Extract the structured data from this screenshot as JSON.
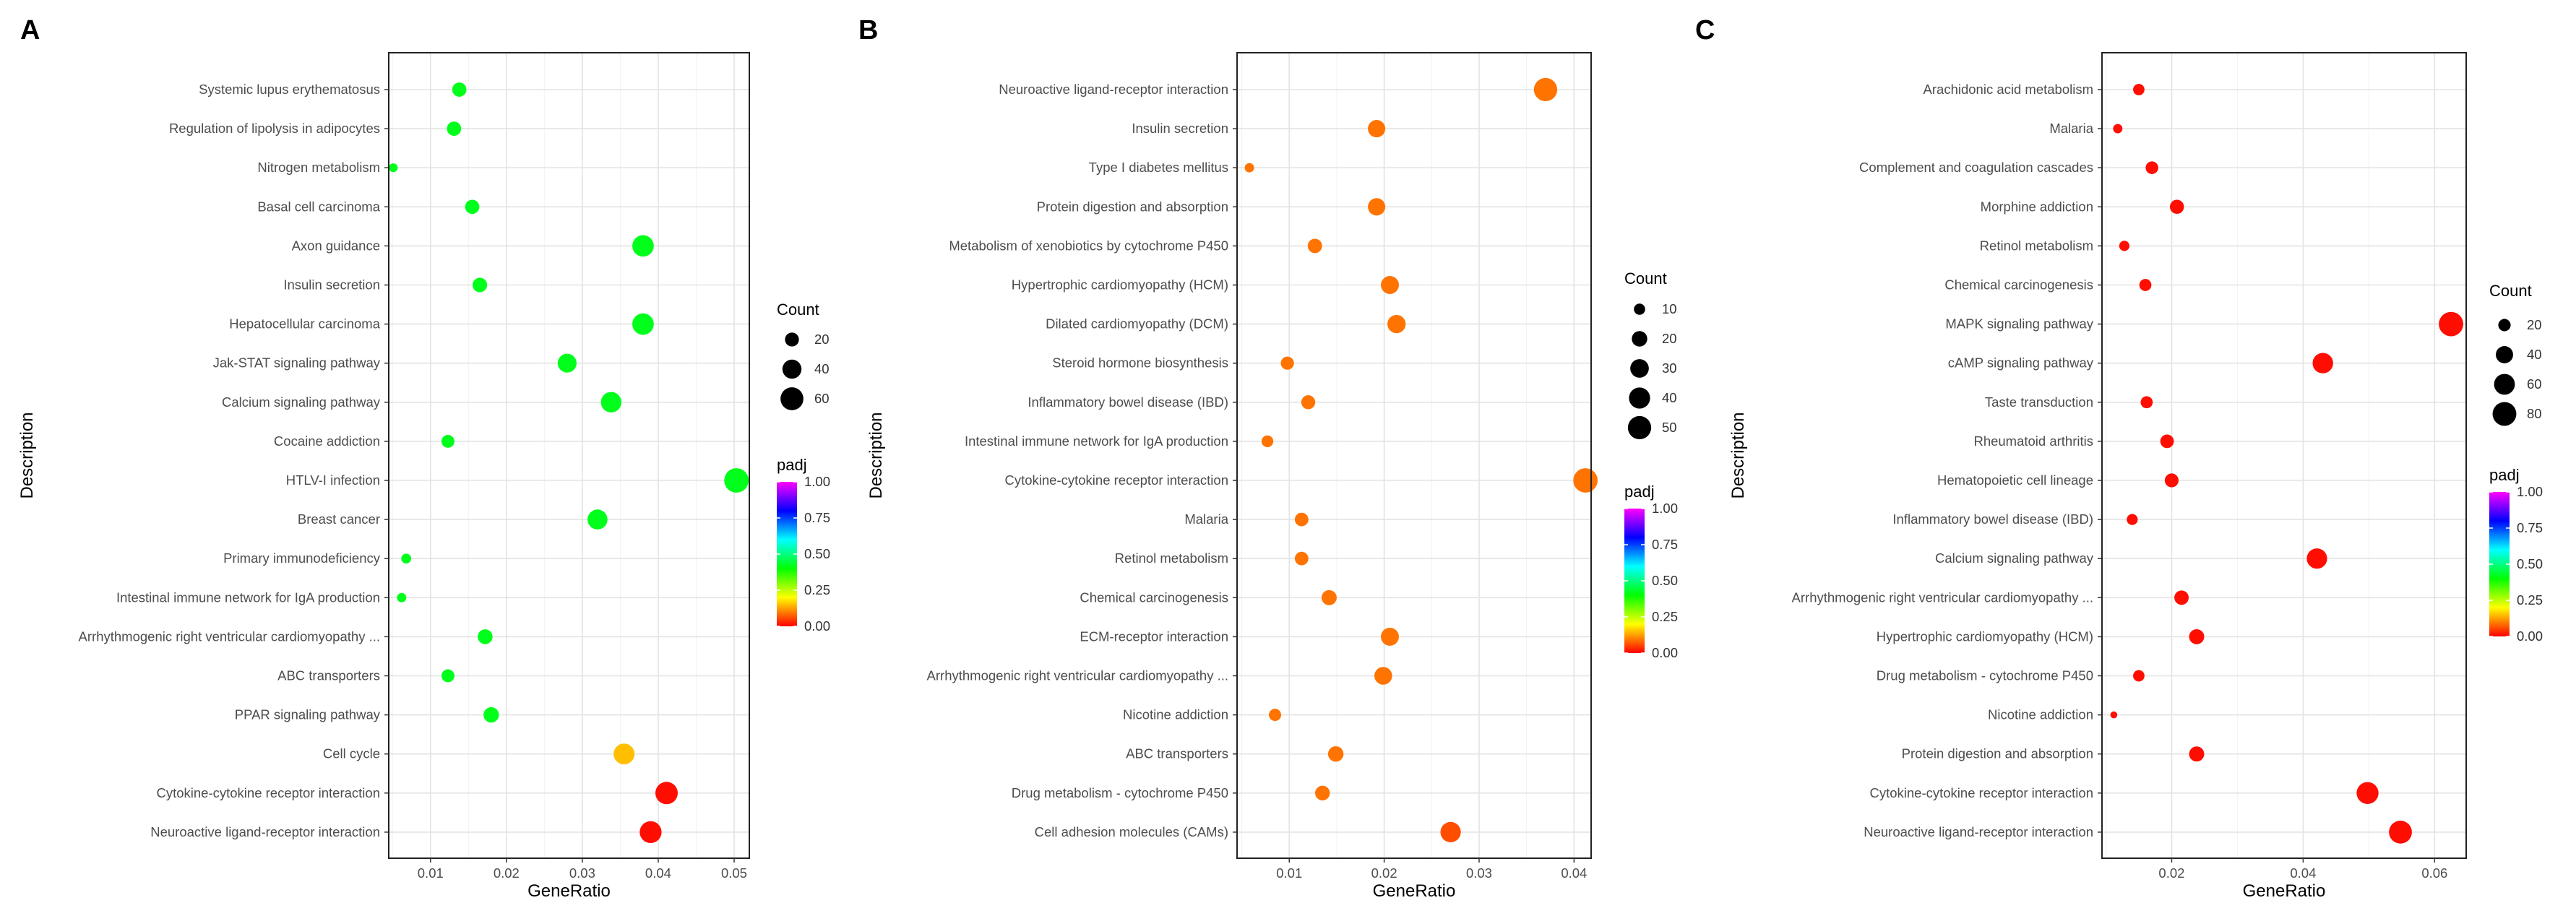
{
  "figure": {
    "shared": {
      "y_label": "Description",
      "x_label": "GeneRatio",
      "size_legend_title": "Count",
      "color_legend_title": "padj",
      "color_ticks": [
        "1.00",
        "0.75",
        "0.50",
        "0.25",
        "0.00"
      ],
      "colorscale": [
        "#ff0000",
        "#ffff00",
        "#00ff00",
        "#00ffff",
        "#0000ff",
        "#ff00ff"
      ]
    }
  },
  "chart_data": [
    {
      "panel": "A",
      "type": "scatter",
      "xlabel": "GeneRatio",
      "ylabel": "Description",
      "xlim": [
        0.0045,
        0.052
      ],
      "x_ticks": [
        0.01,
        0.02,
        0.03,
        0.04,
        0.05
      ],
      "x_tick_labels": [
        "0.01",
        "0.02",
        "0.03",
        "0.04",
        "0.05"
      ],
      "size_legend": {
        "values": [
          20,
          40,
          60
        ],
        "labels": [
          "20",
          "40",
          "60"
        ]
      },
      "count_range": [
        4,
        70
      ],
      "points": [
        {
          "term": "Systemic lupus erythematosus",
          "gene_ratio": 0.0138,
          "count": 21,
          "padj": 0.42
        },
        {
          "term": "Regulation of lipolysis in adipocytes",
          "gene_ratio": 0.0131,
          "count": 21,
          "padj": 0.42
        },
        {
          "term": "Nitrogen metabolism",
          "gene_ratio": 0.0051,
          "count": 8,
          "padj": 0.42
        },
        {
          "term": "Basal cell carcinoma",
          "gene_ratio": 0.0155,
          "count": 21,
          "padj": 0.42
        },
        {
          "term": "Axon guidance",
          "gene_ratio": 0.038,
          "count": 52,
          "padj": 0.42
        },
        {
          "term": "Insulin secretion",
          "gene_ratio": 0.0165,
          "count": 22,
          "padj": 0.42
        },
        {
          "term": "Hepatocellular carcinoma",
          "gene_ratio": 0.038,
          "count": 52,
          "padj": 0.42
        },
        {
          "term": "Jak-STAT signaling pathway",
          "gene_ratio": 0.028,
          "count": 39,
          "padj": 0.42
        },
        {
          "term": "Calcium signaling pathway",
          "gene_ratio": 0.0338,
          "count": 47,
          "padj": 0.42
        },
        {
          "term": "Cocaine addiction",
          "gene_ratio": 0.0123,
          "count": 17,
          "padj": 0.42
        },
        {
          "term": "HTLV-I infection",
          "gene_ratio": 0.0503,
          "count": 69,
          "padj": 0.42
        },
        {
          "term": "Breast cancer",
          "gene_ratio": 0.032,
          "count": 44,
          "padj": 0.42
        },
        {
          "term": "Primary immunodeficiency",
          "gene_ratio": 0.0068,
          "count": 10,
          "padj": 0.42
        },
        {
          "term": "Intestinal immune network for IgA production",
          "gene_ratio": 0.0062,
          "count": 9,
          "padj": 0.42
        },
        {
          "term": "Arrhythmogenic right ventricular cardiomyopathy ...",
          "gene_ratio": 0.0172,
          "count": 23,
          "padj": 0.42
        },
        {
          "term": "ABC transporters",
          "gene_ratio": 0.0123,
          "count": 17,
          "padj": 0.42
        },
        {
          "term": "PPAR signaling pathway",
          "gene_ratio": 0.018,
          "count": 25,
          "padj": 0.42
        },
        {
          "term": "Cell cycle",
          "gene_ratio": 0.0355,
          "count": 49,
          "padj": 0.15
        },
        {
          "term": "Cytokine-cytokine receptor interaction",
          "gene_ratio": 0.0411,
          "count": 57,
          "padj": 0.01
        },
        {
          "term": "Neuroactive ligand-receptor interaction",
          "gene_ratio": 0.039,
          "count": 54,
          "padj": 0.01
        }
      ]
    },
    {
      "panel": "B",
      "type": "scatter",
      "xlabel": "GeneRatio",
      "ylabel": "Description",
      "xlim": [
        0.0045,
        0.0418
      ],
      "x_ticks": [
        0.01,
        0.02,
        0.03,
        0.04
      ],
      "x_tick_labels": [
        "0.01",
        "0.02",
        "0.03",
        "0.04"
      ],
      "size_legend": {
        "values": [
          10,
          20,
          30,
          40,
          50
        ],
        "labels": [
          "10",
          "20",
          "30",
          "40",
          "50"
        ]
      },
      "count_range": [
        3,
        56
      ],
      "points": [
        {
          "term": "Neuroactive ligand-receptor interaction",
          "gene_ratio": 0.037,
          "count": 50,
          "padj": 0.09
        },
        {
          "term": "Insulin secretion",
          "gene_ratio": 0.0192,
          "count": 26,
          "padj": 0.09
        },
        {
          "term": "Type I diabetes mellitus",
          "gene_ratio": 0.0058,
          "count": 7,
          "padj": 0.09
        },
        {
          "term": "Protein digestion and absorption",
          "gene_ratio": 0.0192,
          "count": 26,
          "padj": 0.09
        },
        {
          "term": "Metabolism of xenobiotics by cytochrome P450",
          "gene_ratio": 0.0127,
          "count": 17,
          "padj": 0.09
        },
        {
          "term": "Hypertrophic cardiomyopathy (HCM)",
          "gene_ratio": 0.0206,
          "count": 28,
          "padj": 0.09
        },
        {
          "term": "Dilated cardiomyopathy (DCM)",
          "gene_ratio": 0.0213,
          "count": 29,
          "padj": 0.09
        },
        {
          "term": "Steroid hormone biosynthesis",
          "gene_ratio": 0.0098,
          "count": 14,
          "padj": 0.09
        },
        {
          "term": "Inflammatory bowel disease (IBD)",
          "gene_ratio": 0.012,
          "count": 16,
          "padj": 0.09
        },
        {
          "term": "Intestinal immune network for IgA production",
          "gene_ratio": 0.0077,
          "count": 11,
          "padj": 0.09
        },
        {
          "term": "Cytokine-cytokine receptor interaction",
          "gene_ratio": 0.0412,
          "count": 55,
          "padj": 0.09
        },
        {
          "term": "Malaria",
          "gene_ratio": 0.0113,
          "count": 15,
          "padj": 0.09
        },
        {
          "term": "Retinol metabolism",
          "gene_ratio": 0.0113,
          "count": 15,
          "padj": 0.09
        },
        {
          "term": "Chemical carcinogenesis",
          "gene_ratio": 0.0142,
          "count": 19,
          "padj": 0.09
        },
        {
          "term": "ECM-receptor interaction",
          "gene_ratio": 0.0206,
          "count": 28,
          "padj": 0.09
        },
        {
          "term": "Arrhythmogenic right ventricular cardiomyopathy ...",
          "gene_ratio": 0.0199,
          "count": 27,
          "padj": 0.09
        },
        {
          "term": "Nicotine addiction",
          "gene_ratio": 0.0085,
          "count": 12,
          "padj": 0.09
        },
        {
          "term": "ABC transporters",
          "gene_ratio": 0.0149,
          "count": 20,
          "padj": 0.09
        },
        {
          "term": "Drug metabolism - cytochrome P450",
          "gene_ratio": 0.0135,
          "count": 18,
          "padj": 0.09
        },
        {
          "term": "Cell adhesion molecules (CAMs)",
          "gene_ratio": 0.027,
          "count": 37,
          "padj": 0.06
        }
      ]
    },
    {
      "panel": "C",
      "type": "scatter",
      "xlabel": "GeneRatio",
      "ylabel": "Description",
      "xlim": [
        0.0094,
        0.0648
      ],
      "x_ticks": [
        0.02,
        0.04,
        0.06
      ],
      "x_tick_labels": [
        "0.02",
        "0.04",
        "0.06"
      ],
      "size_legend": {
        "values": [
          20,
          40,
          60,
          80
        ],
        "labels": [
          "20",
          "40",
          "60",
          "80"
        ]
      },
      "count_range": [
        6,
        86
      ],
      "points": [
        {
          "term": "Arachidonic acid metabolism",
          "gene_ratio": 0.015,
          "count": 17,
          "padj": 0.01
        },
        {
          "term": "Malaria",
          "gene_ratio": 0.0118,
          "count": 12,
          "padj": 0.01
        },
        {
          "term": "Complement and coagulation cascades",
          "gene_ratio": 0.017,
          "count": 21,
          "padj": 0.01
        },
        {
          "term": "Morphine addiction",
          "gene_ratio": 0.0208,
          "count": 26,
          "padj": 0.01
        },
        {
          "term": "Retinol metabolism",
          "gene_ratio": 0.0128,
          "count": 14,
          "padj": 0.01
        },
        {
          "term": "Chemical carcinogenesis",
          "gene_ratio": 0.016,
          "count": 19,
          "padj": 0.01
        },
        {
          "term": "MAPK signaling pathway",
          "gene_ratio": 0.0625,
          "count": 85,
          "padj": 0.01
        },
        {
          "term": "cAMP signaling pathway",
          "gene_ratio": 0.043,
          "count": 58,
          "padj": 0.01
        },
        {
          "term": "Taste transduction",
          "gene_ratio": 0.0162,
          "count": 19,
          "padj": 0.01
        },
        {
          "term": "Rheumatoid arthritis",
          "gene_ratio": 0.0193,
          "count": 24,
          "padj": 0.01
        },
        {
          "term": "Hematopoietic cell lineage",
          "gene_ratio": 0.02,
          "count": 25,
          "padj": 0.01
        },
        {
          "term": "Inflammatory bowel disease (IBD)",
          "gene_ratio": 0.014,
          "count": 16,
          "padj": 0.01
        },
        {
          "term": "Calcium signaling pathway",
          "gene_ratio": 0.0421,
          "count": 57,
          "padj": 0.01
        },
        {
          "term": "Arrhythmogenic right ventricular cardiomyopathy ...",
          "gene_ratio": 0.0215,
          "count": 27,
          "padj": 0.01
        },
        {
          "term": "Hypertrophic cardiomyopathy (HCM)",
          "gene_ratio": 0.0238,
          "count": 30,
          "padj": 0.01
        },
        {
          "term": "Drug metabolism - cytochrome P450",
          "gene_ratio": 0.015,
          "count": 17,
          "padj": 0.01
        },
        {
          "term": "Nicotine addiction",
          "gene_ratio": 0.0112,
          "count": 8,
          "padj": 0.01
        },
        {
          "term": "Protein digestion and absorption",
          "gene_ratio": 0.0238,
          "count": 30,
          "padj": 0.01
        },
        {
          "term": "Cytokine-cytokine receptor interaction",
          "gene_ratio": 0.0498,
          "count": 67,
          "padj": 0.01
        },
        {
          "term": "Neuroactive ligand-receptor interaction",
          "gene_ratio": 0.0548,
          "count": 74,
          "padj": 0.01
        }
      ]
    }
  ]
}
